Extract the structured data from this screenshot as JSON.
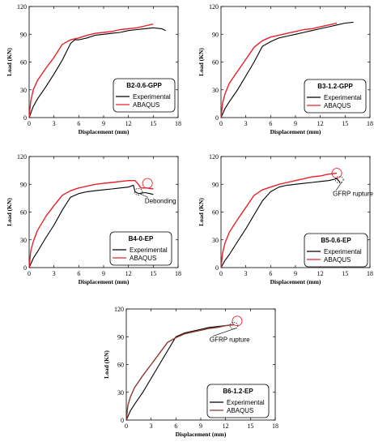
{
  "chart_data": [
    {
      "type": "line",
      "xlabel": "Displacement (mm)",
      "ylabel": "Load (KN)",
      "xlim": [
        0,
        18
      ],
      "ylim": [
        0,
        120
      ],
      "xticks": [
        "0",
        "3",
        "6",
        "9",
        "12",
        "15",
        "18"
      ],
      "yticks": [
        "0",
        "30",
        "60",
        "90",
        "120"
      ],
      "legend_title": "B2-0.6-GPP",
      "legend": "bottom-right",
      "series": [
        {
          "name": "Experimental",
          "color": "#000000",
          "x": [
            0,
            0.5,
            1,
            2,
            3,
            4,
            5,
            5.5,
            6,
            7,
            8,
            9,
            10,
            11,
            12,
            13,
            14,
            15,
            16,
            16.5
          ],
          "y": [
            0,
            12,
            20,
            33,
            47,
            62,
            80,
            84,
            84,
            86,
            89,
            90,
            91,
            92,
            94,
            95,
            96,
            97,
            96,
            94
          ]
        },
        {
          "name": "ABAQUS",
          "color": "#e8202a",
          "x": [
            0,
            0.2,
            0.5,
            1,
            2,
            3,
            4,
            5,
            6,
            7,
            8,
            9,
            10,
            11,
            12,
            13,
            14,
            15
          ],
          "y": [
            0,
            18,
            30,
            40,
            53,
            65,
            79,
            84,
            86,
            89,
            91,
            92,
            93,
            95,
            96,
            97,
            99,
            101
          ]
        }
      ]
    },
    {
      "type": "line",
      "xlabel": "Displacement (mm)",
      "ylabel": "Load (KN)",
      "xlim": [
        0,
        18
      ],
      "ylim": [
        0,
        120
      ],
      "xticks": [
        "0",
        "3",
        "6",
        "9",
        "12",
        "15",
        "18"
      ],
      "yticks": [
        "0",
        "30",
        "60",
        "90",
        "120"
      ],
      "legend_title": "B3-1.2-GPP",
      "legend": "bottom-right",
      "series": [
        {
          "name": "Experimental",
          "color": "#000000",
          "x": [
            0,
            0.5,
            1,
            2,
            3,
            4,
            5,
            6,
            7,
            8,
            9,
            10,
            11,
            12,
            13,
            14,
            15,
            16
          ],
          "y": [
            0,
            10,
            17,
            30,
            45,
            60,
            77,
            82,
            86,
            88,
            90,
            92,
            94,
            96,
            98,
            100,
            102,
            103
          ]
        },
        {
          "name": "ABAQUS",
          "color": "#e8202a",
          "x": [
            0,
            0.2,
            0.5,
            1,
            2,
            3,
            4,
            5,
            6,
            7,
            8,
            9,
            10,
            11,
            12,
            13,
            14
          ],
          "y": [
            0,
            16,
            26,
            37,
            50,
            63,
            76,
            83,
            87,
            89,
            91,
            93,
            95,
            96,
            98,
            100,
            102
          ]
        }
      ]
    },
    {
      "type": "line",
      "xlabel": "Displacement (mm)",
      "ylabel": "Load (KN)",
      "xlim": [
        0,
        18
      ],
      "ylim": [
        0,
        120
      ],
      "xticks": [
        "0",
        "3",
        "6",
        "9",
        "12",
        "15",
        "18"
      ],
      "yticks": [
        "0",
        "30",
        "60",
        "90",
        "120"
      ],
      "legend_title": "B4-0-EP",
      "legend": "bottom-right",
      "annotation": {
        "text": "Debonding",
        "x": 12.8,
        "y": 88
      },
      "series": [
        {
          "name": "Experimental",
          "color": "#000000",
          "x": [
            0,
            0.5,
            1,
            2,
            3,
            4,
            5,
            6,
            7,
            8,
            9,
            10,
            11,
            12,
            12.6,
            12.8,
            13.2,
            14,
            14.6,
            15
          ],
          "y": [
            0,
            10,
            17,
            32,
            46,
            62,
            76,
            80,
            82,
            83,
            84,
            85,
            86,
            87,
            89,
            82,
            80,
            81,
            80,
            79
          ]
        },
        {
          "name": "ABAQUS",
          "color": "#e8202a",
          "x": [
            0,
            0.2,
            0.5,
            1,
            2,
            3,
            4,
            5,
            6,
            7,
            8,
            9,
            10,
            11,
            12,
            12.8,
            13.2,
            13.5,
            14.2,
            15
          ],
          "y": [
            0,
            18,
            28,
            40,
            55,
            67,
            78,
            83,
            86,
            88,
            90,
            91,
            92,
            93,
            94,
            94,
            90,
            86,
            86,
            85
          ]
        }
      ]
    },
    {
      "type": "line",
      "xlabel": "Displacement (mm)",
      "ylabel": "Load (KN)",
      "xlim": [
        0,
        18
      ],
      "ylim": [
        0,
        120
      ],
      "xticks": [
        "0",
        "3",
        "6",
        "9",
        "12",
        "15",
        "18"
      ],
      "yticks": [
        "0",
        "30",
        "60",
        "90",
        "120"
      ],
      "legend_title": "B5-0.6-EP",
      "legend": "bottom-right",
      "annotation": {
        "text": "GFRP rupture",
        "x": 14,
        "y": 97
      },
      "series": [
        {
          "name": "Experimental",
          "color": "#000000",
          "x": [
            0,
            0.5,
            1,
            2,
            3,
            4,
            5,
            6,
            7,
            8,
            9,
            10,
            11,
            12,
            13,
            14,
            14.4
          ],
          "y": [
            0,
            8,
            14,
            28,
            42,
            57,
            72,
            82,
            87,
            89,
            90,
            91,
            92,
            93,
            94,
            96,
            92
          ]
        },
        {
          "name": "ABAQUS",
          "color": "#e8202a",
          "x": [
            0,
            0.2,
            0.5,
            1,
            2,
            3,
            4,
            5,
            6,
            7,
            8,
            9,
            10,
            11,
            12,
            13,
            14
          ],
          "y": [
            0,
            16,
            27,
            38,
            52,
            65,
            78,
            84,
            87,
            90,
            92,
            94,
            96,
            98,
            99,
            101,
            102
          ]
        }
      ]
    },
    {
      "type": "line",
      "xlabel": "Displacement (mm)",
      "ylabel": "Load (KN)",
      "xlim": [
        0,
        18
      ],
      "ylim": [
        0,
        120
      ],
      "xticks": [
        "0",
        "3",
        "6",
        "9",
        "12",
        "15",
        "18"
      ],
      "yticks": [
        "0",
        "30",
        "60",
        "90",
        "120"
      ],
      "legend_title": "B6-1.2-EP",
      "legend": "bottom-right",
      "annotation": {
        "text": "GFRP rupture",
        "x": 12.6,
        "y": 101
      },
      "series": [
        {
          "name": "Experimental",
          "color": "#000000",
          "x": [
            0,
            0.5,
            1,
            2,
            3,
            4,
            5,
            6,
            7,
            8,
            9,
            10,
            11,
            12,
            13
          ],
          "y": [
            0,
            10,
            17,
            30,
            45,
            60,
            75,
            90,
            94,
            96,
            98,
            100,
            101,
            102,
            103
          ]
        },
        {
          "name": "ABAQUS",
          "color": "#8b3a2a",
          "x": [
            0,
            0.2,
            0.5,
            1,
            2,
            3,
            4,
            5,
            6,
            7,
            8,
            9,
            10,
            11,
            12,
            13
          ],
          "y": [
            0,
            16,
            25,
            35,
            48,
            60,
            72,
            84,
            89,
            93,
            95,
            97,
            99,
            100,
            102,
            103
          ]
        }
      ]
    }
  ]
}
